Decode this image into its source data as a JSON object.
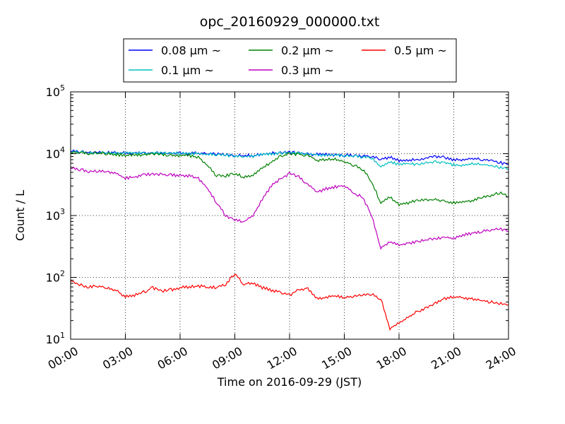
{
  "chart_data": {
    "type": "line",
    "title": "opc_20160929_000000.txt",
    "xlabel": "Time on 2016-09-29 (JST)",
    "ylabel": "Count / L",
    "yscale": "log",
    "ylim": [
      10,
      100000
    ],
    "xlim": [
      "00:00",
      "24:00"
    ],
    "grid": true,
    "legend_position": "top-center",
    "x_ticks": [
      "00:00",
      "03:00",
      "06:00",
      "09:00",
      "12:00",
      "15:00",
      "18:00",
      "21:00",
      "24:00"
    ],
    "y_ticks": [
      {
        "value": 10,
        "base": "10",
        "exp": "1"
      },
      {
        "value": 100,
        "base": "10",
        "exp": "2"
      },
      {
        "value": 1000,
        "base": "10",
        "exp": "3"
      },
      {
        "value": 10000,
        "base": "10",
        "exp": "4"
      },
      {
        "value": 100000,
        "base": "10",
        "exp": "5"
      }
    ],
    "x": [
      "00:00",
      "00:30",
      "01:00",
      "01:30",
      "02:00",
      "02:30",
      "03:00",
      "03:30",
      "04:00",
      "04:30",
      "05:00",
      "05:30",
      "06:00",
      "06:30",
      "07:00",
      "07:30",
      "08:00",
      "08:30",
      "09:00",
      "09:30",
      "10:00",
      "10:30",
      "11:00",
      "11:30",
      "12:00",
      "12:30",
      "13:00",
      "13:30",
      "14:00",
      "14:30",
      "15:00",
      "15:30",
      "16:00",
      "16:30",
      "17:00",
      "17:30",
      "18:00",
      "18:30",
      "19:00",
      "19:30",
      "20:00",
      "20:30",
      "21:00",
      "21:30",
      "22:00",
      "22:30",
      "23:00",
      "23:30",
      "24:00"
    ],
    "series": [
      {
        "name": "0.08 μm ~",
        "color": "#0000ff",
        "values": [
          11000,
          10700,
          10500,
          10600,
          10500,
          10400,
          10300,
          10300,
          10200,
          10200,
          10200,
          10300,
          10200,
          10200,
          10200,
          10100,
          10000,
          9600,
          9400,
          9300,
          9300,
          9900,
          10100,
          10400,
          10500,
          10300,
          10000,
          9700,
          9700,
          9600,
          9600,
          9400,
          9200,
          9000,
          8100,
          8800,
          7800,
          8000,
          7900,
          8500,
          9000,
          8700,
          8000,
          7800,
          8300,
          8100,
          8000,
          7200,
          6700
        ]
      },
      {
        "name": "0.1 μm ~",
        "color": "#00bfbf",
        "values": [
          10900,
          10600,
          10400,
          10500,
          10400,
          10300,
          10200,
          10200,
          10100,
          10100,
          10100,
          10200,
          10100,
          10100,
          10000,
          9900,
          9800,
          9400,
          9200,
          9100,
          9100,
          9700,
          9900,
          10200,
          10400,
          10200,
          9800,
          9500,
          9400,
          9400,
          9300,
          9100,
          8800,
          8600,
          6300,
          7500,
          6700,
          6900,
          6700,
          7100,
          7400,
          7200,
          6600,
          6400,
          6800,
          6700,
          6500,
          6000,
          5600
        ]
      },
      {
        "name": "0.2 μm ~",
        "color": "#008000",
        "values": [
          10700,
          10400,
          10000,
          10300,
          10000,
          9700,
          9500,
          9500,
          9600,
          9700,
          9500,
          9500,
          9400,
          9300,
          8800,
          6500,
          4400,
          4400,
          4700,
          4200,
          4400,
          5800,
          7300,
          9000,
          10000,
          9800,
          9500,
          7800,
          8100,
          8100,
          7500,
          6500,
          5600,
          3500,
          1600,
          2000,
          1500,
          1600,
          1800,
          1800,
          1800,
          1700,
          1600,
          1650,
          1750,
          1950,
          2100,
          2350,
          2000
        ]
      },
      {
        "name": "0.3 μm ~",
        "color": "#bf00bf",
        "values": [
          5900,
          5500,
          5200,
          5200,
          5200,
          4800,
          4000,
          4200,
          4600,
          4700,
          4600,
          4500,
          4500,
          4400,
          4000,
          2800,
          1600,
          1000,
          850,
          800,
          1000,
          1800,
          3000,
          3900,
          4800,
          4200,
          3200,
          2400,
          2700,
          2900,
          3100,
          2300,
          2000,
          1000,
          300,
          380,
          330,
          350,
          380,
          400,
          420,
          440,
          430,
          480,
          520,
          550,
          580,
          620,
          560
        ]
      },
      {
        "name": "0.5 μm ~",
        "color": "#ff0000",
        "values": [
          90,
          75,
          70,
          72,
          68,
          62,
          48,
          52,
          58,
          68,
          60,
          63,
          68,
          70,
          72,
          70,
          68,
          78,
          115,
          78,
          80,
          68,
          62,
          58,
          52,
          62,
          65,
          45,
          48,
          50,
          48,
          50,
          52,
          54,
          45,
          15,
          18,
          22,
          28,
          32,
          38,
          45,
          48,
          47,
          45,
          43,
          40,
          38,
          36
        ]
      }
    ]
  }
}
